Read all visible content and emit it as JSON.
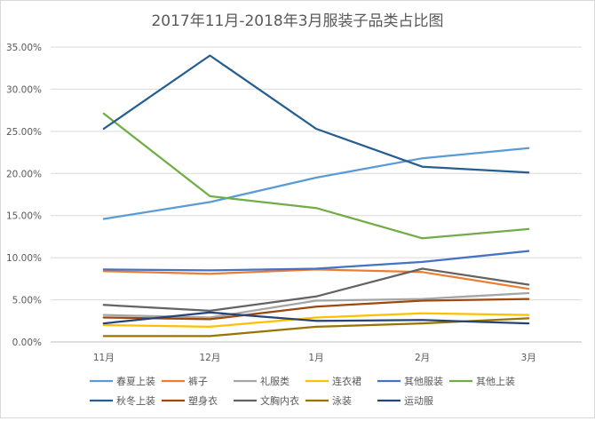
{
  "chart_data": {
    "type": "line",
    "title": "2017年11月-2018年3月服装子品类占比图",
    "categories": [
      "11月",
      "12月",
      "1月",
      "2月",
      "3月"
    ],
    "ylim": [
      0,
      0.35
    ],
    "yticks": [
      0,
      0.05,
      0.1,
      0.15,
      0.2,
      0.25,
      0.3,
      0.35
    ],
    "ytick_labels": [
      "0.00%",
      "5.00%",
      "10.00%",
      "15.00%",
      "20.00%",
      "25.00%",
      "30.00%",
      "35.00%"
    ],
    "grid": true,
    "legend_position": "bottom",
    "series": [
      {
        "name": "春夏上装",
        "color": "#5b9bd5",
        "values": [
          0.146,
          0.166,
          0.195,
          0.218,
          0.23
        ]
      },
      {
        "name": "裤子",
        "color": "#ed7d31",
        "values": [
          0.084,
          0.081,
          0.086,
          0.083,
          0.063
        ]
      },
      {
        "name": "礼服类",
        "color": "#a5a5a5",
        "values": [
          0.032,
          0.029,
          0.049,
          0.051,
          0.058
        ]
      },
      {
        "name": "连衣裙",
        "color": "#ffc000",
        "values": [
          0.02,
          0.018,
          0.029,
          0.034,
          0.032
        ]
      },
      {
        "name": "其他服装",
        "color": "#4472c4",
        "values": [
          0.086,
          0.085,
          0.087,
          0.095,
          0.108
        ]
      },
      {
        "name": "其他上装",
        "color": "#70ad47",
        "values": [
          0.271,
          0.173,
          0.159,
          0.123,
          0.134
        ]
      },
      {
        "name": "秋冬上装",
        "color": "#255e91",
        "values": [
          0.253,
          0.34,
          0.253,
          0.208,
          0.201
        ]
      },
      {
        "name": "塑身衣",
        "color": "#9e480e",
        "values": [
          0.029,
          0.027,
          0.042,
          0.049,
          0.051
        ]
      },
      {
        "name": "文胸内衣",
        "color": "#636363",
        "values": [
          0.044,
          0.037,
          0.054,
          0.087,
          0.068
        ]
      },
      {
        "name": "泳装",
        "color": "#997300",
        "values": [
          0.007,
          0.007,
          0.018,
          0.022,
          0.028
        ]
      },
      {
        "name": "运动服",
        "color": "#264478",
        "values": [
          0.022,
          0.035,
          0.025,
          0.026,
          0.022
        ]
      }
    ]
  }
}
